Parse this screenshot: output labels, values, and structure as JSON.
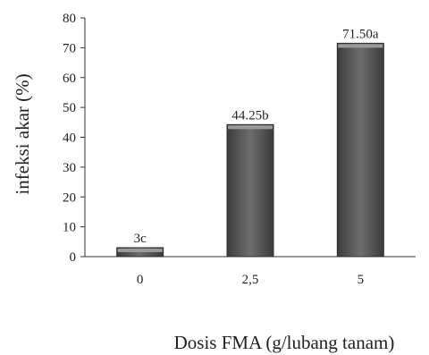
{
  "chart_data": {
    "type": "bar",
    "categories": [
      "0",
      "2,5",
      "5"
    ],
    "values": [
      3,
      44.25,
      71.5
    ],
    "data_labels": [
      "3c",
      "44.25b",
      "71.50a"
    ],
    "title": "",
    "xlabel": "Dosis FMA (g/lubang tanam)",
    "ylabel": "infeksi akar (%)",
    "ylim": [
      0,
      80
    ],
    "yticks": [
      0,
      10,
      20,
      30,
      40,
      50,
      60,
      70,
      80
    ],
    "grid": false,
    "legend": "none",
    "bar_color": "#5a5a5a"
  }
}
